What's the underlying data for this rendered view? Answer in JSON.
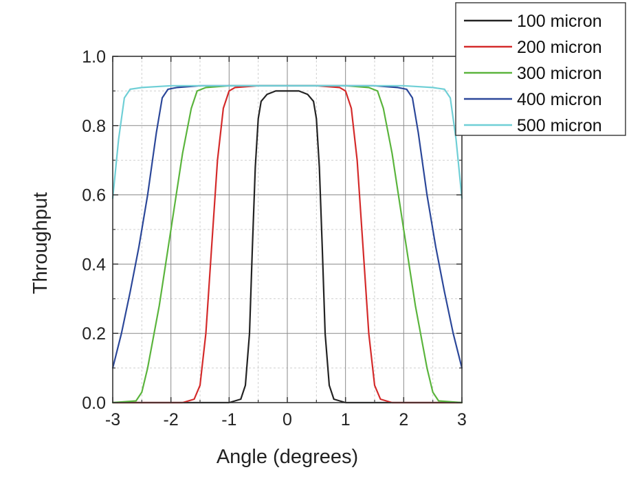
{
  "chart_data": {
    "type": "line",
    "title": "",
    "xlabel": "Angle (degrees)",
    "ylabel": "Throughput",
    "xlim": [
      -3,
      3
    ],
    "ylim": [
      0,
      1.0
    ],
    "x_ticks": [
      -3,
      -2,
      -1,
      0,
      1,
      2,
      3
    ],
    "x_tick_labels": [
      "-3",
      "-2",
      "-1",
      "0",
      "1",
      "2",
      "3"
    ],
    "x_minor_ticks": [
      -2.5,
      -1.5,
      -0.5,
      0.5,
      1.5,
      2.5
    ],
    "y_ticks": [
      0,
      0.2,
      0.4,
      0.6,
      0.8,
      1.0
    ],
    "y_tick_labels": [
      "0.0",
      "0.2",
      "0.4",
      "0.6",
      "0.8",
      "1.0"
    ],
    "y_minor_ticks": [
      0.1,
      0.3,
      0.5,
      0.7,
      0.9
    ],
    "grid": true,
    "legend_position": "top-right, outside",
    "series": [
      {
        "name": "100 micron",
        "color": "#222222",
        "points": [
          [
            -3,
            0.0
          ],
          [
            -1.0,
            0.0
          ],
          [
            -0.8,
            0.01
          ],
          [
            -0.72,
            0.05
          ],
          [
            -0.65,
            0.2
          ],
          [
            -0.6,
            0.45
          ],
          [
            -0.55,
            0.68
          ],
          [
            -0.5,
            0.82
          ],
          [
            -0.45,
            0.87
          ],
          [
            -0.35,
            0.89
          ],
          [
            -0.2,
            0.9
          ],
          [
            0,
            0.9
          ],
          [
            0.2,
            0.9
          ],
          [
            0.35,
            0.89
          ],
          [
            0.45,
            0.87
          ],
          [
            0.5,
            0.82
          ],
          [
            0.55,
            0.68
          ],
          [
            0.6,
            0.45
          ],
          [
            0.65,
            0.2
          ],
          [
            0.72,
            0.05
          ],
          [
            0.8,
            0.01
          ],
          [
            1.0,
            0.0
          ],
          [
            3,
            0.0
          ]
        ]
      },
      {
        "name": "200 micron",
        "color": "#d42a2a",
        "points": [
          [
            -3,
            0.0
          ],
          [
            -1.8,
            0.0
          ],
          [
            -1.6,
            0.01
          ],
          [
            -1.5,
            0.05
          ],
          [
            -1.4,
            0.2
          ],
          [
            -1.3,
            0.45
          ],
          [
            -1.2,
            0.7
          ],
          [
            -1.1,
            0.85
          ],
          [
            -1.0,
            0.9
          ],
          [
            -0.9,
            0.91
          ],
          [
            -0.5,
            0.915
          ],
          [
            0,
            0.915
          ],
          [
            0.5,
            0.915
          ],
          [
            0.9,
            0.91
          ],
          [
            1.0,
            0.9
          ],
          [
            1.1,
            0.85
          ],
          [
            1.2,
            0.7
          ],
          [
            1.3,
            0.45
          ],
          [
            1.4,
            0.2
          ],
          [
            1.5,
            0.05
          ],
          [
            1.6,
            0.01
          ],
          [
            1.8,
            0.0
          ],
          [
            3,
            0.0
          ]
        ]
      },
      {
        "name": "300 micron",
        "color": "#5ab43c",
        "points": [
          [
            -3,
            0.0
          ],
          [
            -2.6,
            0.005
          ],
          [
            -2.5,
            0.03
          ],
          [
            -2.4,
            0.1
          ],
          [
            -2.2,
            0.28
          ],
          [
            -2.0,
            0.5
          ],
          [
            -1.8,
            0.72
          ],
          [
            -1.65,
            0.85
          ],
          [
            -1.55,
            0.9
          ],
          [
            -1.4,
            0.91
          ],
          [
            -1.0,
            0.915
          ],
          [
            0,
            0.915
          ],
          [
            1.0,
            0.915
          ],
          [
            1.4,
            0.91
          ],
          [
            1.55,
            0.9
          ],
          [
            1.65,
            0.85
          ],
          [
            1.8,
            0.72
          ],
          [
            2.0,
            0.5
          ],
          [
            2.2,
            0.28
          ],
          [
            2.4,
            0.1
          ],
          [
            2.5,
            0.03
          ],
          [
            2.6,
            0.005
          ],
          [
            3,
            0.0
          ]
        ]
      },
      {
        "name": "400 micron",
        "color": "#2b4799",
        "points": [
          [
            -3,
            0.1
          ],
          [
            -2.85,
            0.2
          ],
          [
            -2.7,
            0.32
          ],
          [
            -2.55,
            0.45
          ],
          [
            -2.4,
            0.6
          ],
          [
            -2.25,
            0.78
          ],
          [
            -2.15,
            0.88
          ],
          [
            -2.05,
            0.905
          ],
          [
            -1.9,
            0.91
          ],
          [
            -1.5,
            0.915
          ],
          [
            0,
            0.915
          ],
          [
            1.5,
            0.915
          ],
          [
            1.9,
            0.91
          ],
          [
            2.05,
            0.905
          ],
          [
            2.15,
            0.88
          ],
          [
            2.25,
            0.78
          ],
          [
            2.4,
            0.6
          ],
          [
            2.55,
            0.45
          ],
          [
            2.7,
            0.32
          ],
          [
            2.85,
            0.2
          ],
          [
            3,
            0.1
          ]
        ]
      },
      {
        "name": "500 micron",
        "color": "#6fcfd6",
        "points": [
          [
            -3,
            0.59
          ],
          [
            -2.9,
            0.76
          ],
          [
            -2.8,
            0.88
          ],
          [
            -2.7,
            0.905
          ],
          [
            -2.5,
            0.91
          ],
          [
            -2.0,
            0.915
          ],
          [
            0,
            0.915
          ],
          [
            2.0,
            0.915
          ],
          [
            2.5,
            0.91
          ],
          [
            2.7,
            0.905
          ],
          [
            2.8,
            0.88
          ],
          [
            2.9,
            0.76
          ],
          [
            3,
            0.59
          ]
        ]
      }
    ]
  }
}
